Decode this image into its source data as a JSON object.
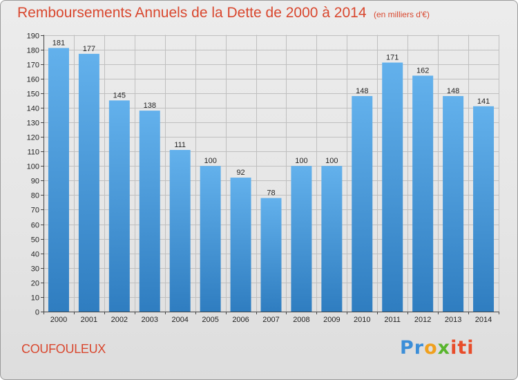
{
  "title": "Remboursements Annuels de la Dette de 2000 à 2014",
  "unit": "(en milliers d'€)",
  "commune": "COUFOULEUX",
  "logo": {
    "p1": "Pr",
    "p2": "o",
    "p3": "x",
    "p4": "iti"
  },
  "colors": {
    "title": "#d9472e",
    "bar_top": "#63b1ec",
    "bar_bottom": "#2f7dc0",
    "grid": "#bfbfbf"
  },
  "chart_data": {
    "type": "bar",
    "categories": [
      "2000",
      "2001",
      "2002",
      "2003",
      "2004",
      "2005",
      "2006",
      "2007",
      "2008",
      "2009",
      "2010",
      "2011",
      "2012",
      "2013",
      "2014"
    ],
    "values": [
      181,
      177,
      145,
      138,
      111,
      100,
      92,
      78,
      100,
      100,
      148,
      171,
      162,
      148,
      141
    ],
    "ylim": [
      0,
      190
    ],
    "yticks": [
      0,
      10,
      20,
      30,
      40,
      50,
      60,
      70,
      80,
      90,
      100,
      110,
      120,
      130,
      140,
      150,
      160,
      170,
      180,
      190
    ],
    "grid": true,
    "xlabel": "",
    "ylabel": ""
  }
}
